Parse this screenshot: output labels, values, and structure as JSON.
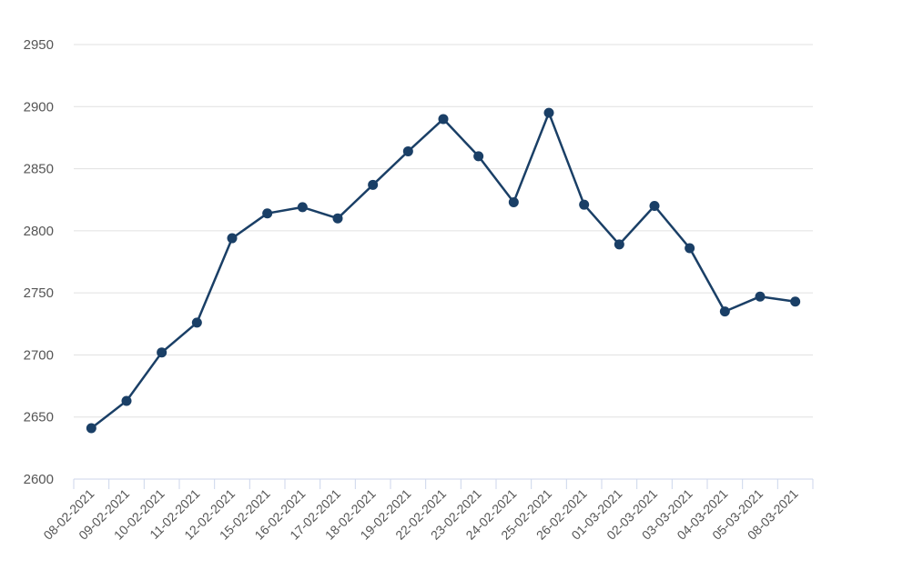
{
  "chart_data": {
    "type": "line",
    "categories": [
      "08-02-2021",
      "09-02-2021",
      "10-02-2021",
      "11-02-2021",
      "12-02-2021",
      "15-02-2021",
      "16-02-2021",
      "17-02-2021",
      "18-02-2021",
      "19-02-2021",
      "22-02-2021",
      "23-02-2021",
      "24-02-2021",
      "25-02-2021",
      "26-02-2021",
      "01-03-2021",
      "02-03-2021",
      "03-03-2021",
      "04-03-2021",
      "05-03-2021",
      "08-03-2021"
    ],
    "series": [
      {
        "values": [
          2641,
          2663,
          2702,
          2726,
          2794,
          2814,
          2819,
          2810,
          2837,
          2864,
          2890,
          2860,
          2823,
          2895,
          2821,
          2789,
          2820,
          2786,
          2735,
          2747,
          2743
        ]
      }
    ],
    "ylim": [
      2600,
      2950
    ],
    "yticks": [
      2600,
      2650,
      2700,
      2750,
      2800,
      2850,
      2900,
      2950
    ],
    "grid": true,
    "legend": "none",
    "colors": {
      "line": "#1a3f66",
      "grid": "#e0e0e0",
      "axis": "#ccd6eb",
      "text": "#555555"
    }
  }
}
